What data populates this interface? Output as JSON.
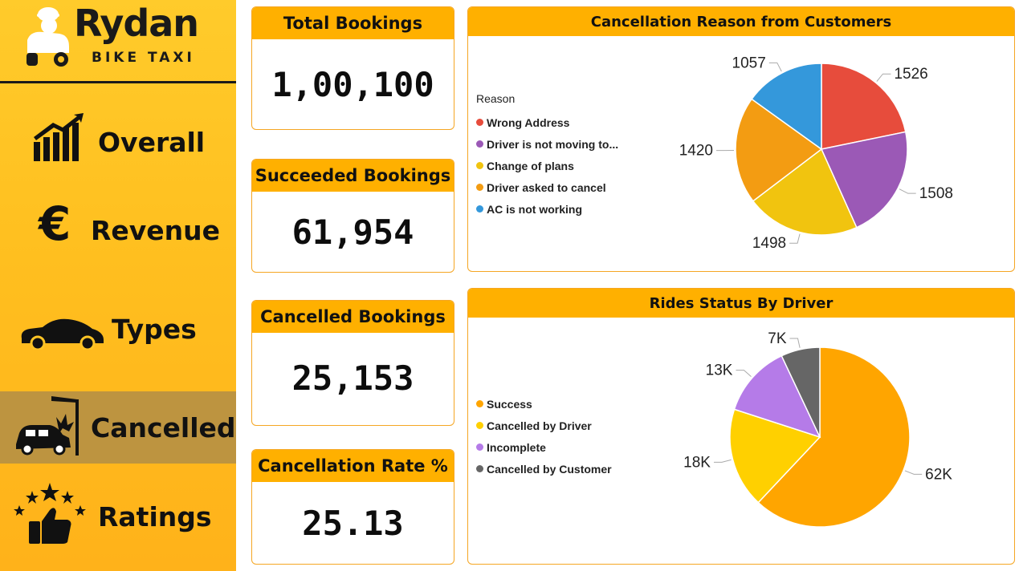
{
  "brand": {
    "name": "Rydan",
    "tagline": "BIKE TAXI"
  },
  "nav": [
    {
      "label": "Overall",
      "icon": "growth-chart-icon",
      "active": false
    },
    {
      "label": "Revenue",
      "icon": "euro-icon",
      "active": false
    },
    {
      "label": "Types",
      "icon": "car-icon",
      "active": false
    },
    {
      "label": "Cancelled",
      "icon": "car-crash-icon",
      "active": true
    },
    {
      "label": "Ratings",
      "icon": "thumbs-up-stars-icon",
      "active": false
    }
  ],
  "kpis": [
    {
      "title": "Total Bookings",
      "value": "1,00,100"
    },
    {
      "title": "Succeeded Bookings",
      "value": "61,954"
    },
    {
      "title": "Cancelled Bookings",
      "value": "25,153"
    },
    {
      "title": "Cancellation Rate %",
      "value": "25.13"
    }
  ],
  "colors": {
    "accent": "#ffb000",
    "sidebar": "#ffc425",
    "active_nav": "#bd9440",
    "border": "#f5a623"
  },
  "chart_data": [
    {
      "type": "pie",
      "title": "Cancellation Reason from Customers",
      "legend_title": "Reason",
      "legend_position": "left",
      "slices": [
        {
          "label": "Wrong Address",
          "display_label": "Wrong Address",
          "value": 1526,
          "value_label": "1526",
          "color": "#e74c3c"
        },
        {
          "label": "Driver is not moving towards pickup location",
          "display_label": "Driver is not moving to...",
          "value": 1508,
          "value_label": "1508",
          "color": "#9b59b6"
        },
        {
          "label": "Change of plans",
          "display_label": "Change of plans",
          "value": 1498,
          "value_label": "1498",
          "color": "#f1c40f"
        },
        {
          "label": "Driver asked to cancel",
          "display_label": "Driver asked to cancel",
          "value": 1420,
          "value_label": "1420",
          "color": "#f39c12"
        },
        {
          "label": "AC is not working",
          "display_label": "AC is not working",
          "value": 1057,
          "value_label": "1057",
          "color": "#3498db"
        }
      ]
    },
    {
      "type": "pie",
      "title": "Rides Status By Driver",
      "legend_position": "left",
      "slices": [
        {
          "label": "Success",
          "display_label": "Success",
          "value": 62,
          "value_label": "62K",
          "color": "#ffa500"
        },
        {
          "label": "Cancelled by Driver",
          "display_label": "Cancelled by Driver",
          "value": 18,
          "value_label": "18K",
          "color": "#ffd000"
        },
        {
          "label": "Incomplete",
          "display_label": "Incomplete",
          "value": 13,
          "value_label": "13K",
          "color": "#b57be8"
        },
        {
          "label": "Cancelled by Customer",
          "display_label": "Cancelled by Customer",
          "value": 7,
          "value_label": "7K",
          "color": "#666666"
        }
      ]
    }
  ]
}
